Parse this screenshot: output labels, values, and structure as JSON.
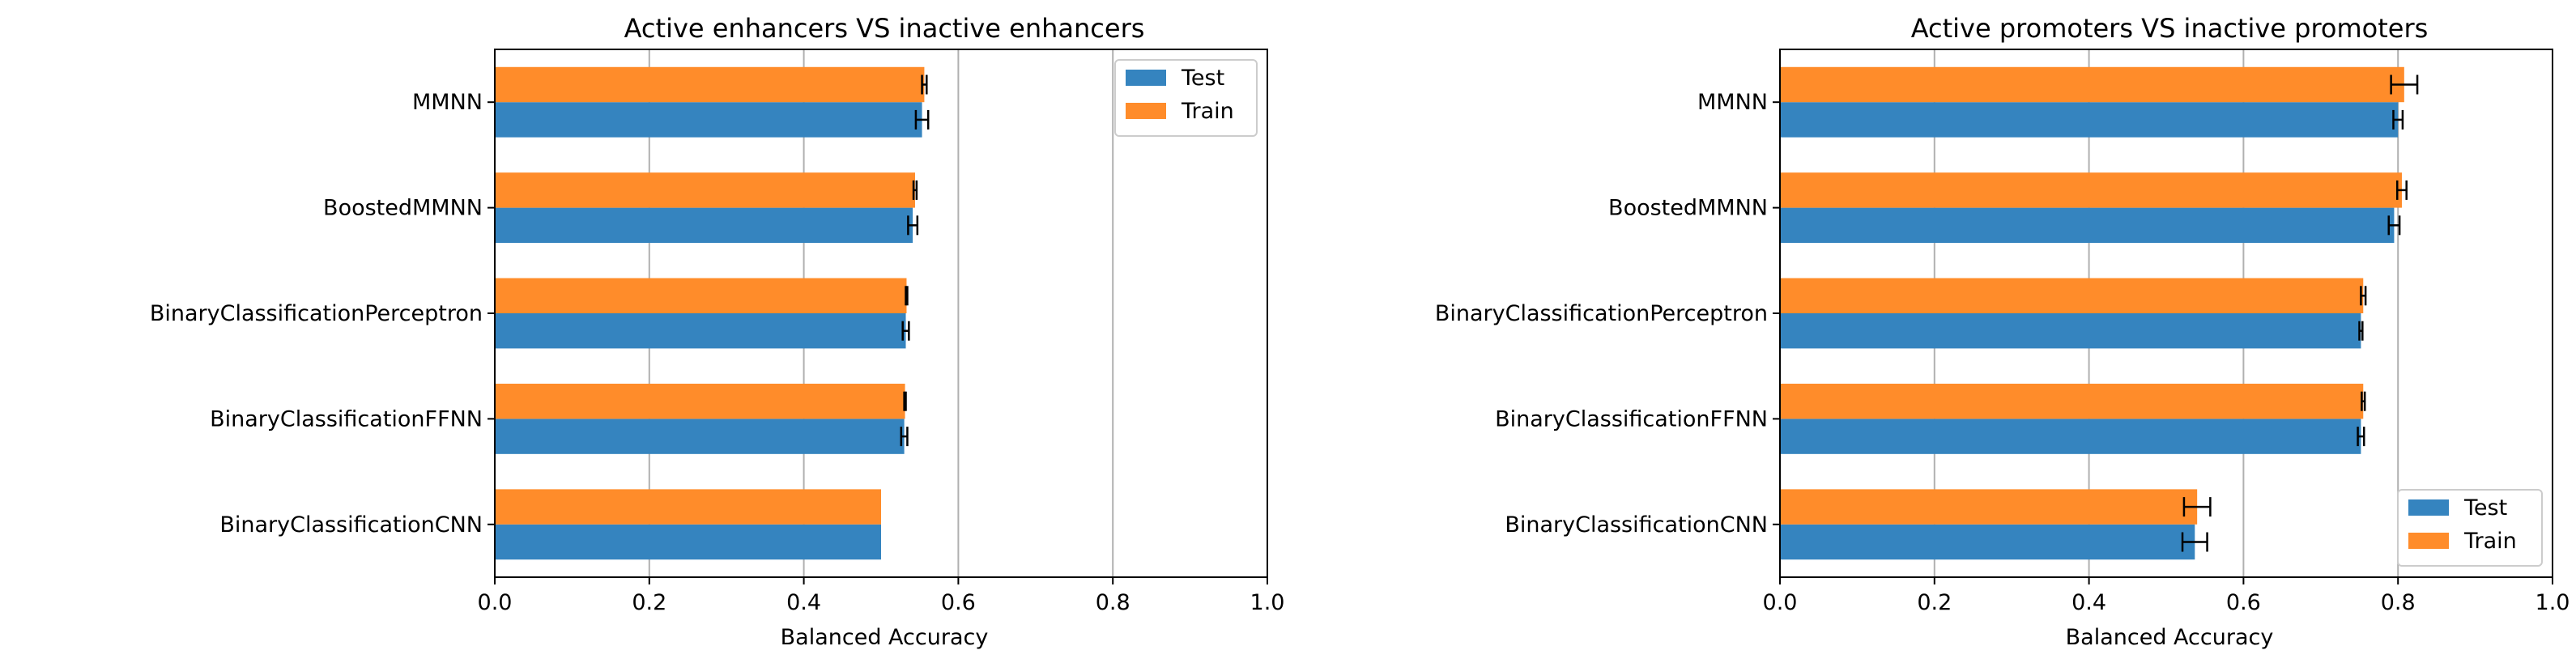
{
  "colors": {
    "test": "#3584bf",
    "train": "#ff8c2a",
    "grid": "#b0b0b0",
    "errorbar": "#000000"
  },
  "chart_data": [
    {
      "type": "bar",
      "orientation": "horizontal",
      "title": "Active enhancers VS inactive enhancers",
      "xlabel": "Balanced Accuracy",
      "ylabel": "",
      "xlim": [
        0,
        1.0
      ],
      "xticks": [
        "0.0",
        "0.2",
        "0.4",
        "0.6",
        "0.8",
        "1.0"
      ],
      "grid": "vertical",
      "legend_position": "upper-right",
      "categories": [
        "MMNN",
        "BoostedMMNN",
        "BinaryClassificationPerceptron",
        "BinaryClassificationFFNN",
        "BinaryClassificationCNN"
      ],
      "series": [
        {
          "name": "Test",
          "values": [
            0.553,
            0.541,
            0.532,
            0.53,
            0.5
          ],
          "errors": [
            0.008,
            0.006,
            0.004,
            0.004,
            0.0
          ]
        },
        {
          "name": "Train",
          "values": [
            0.556,
            0.544,
            0.533,
            0.531,
            0.5
          ],
          "errors": [
            0.003,
            0.002,
            0.001,
            0.001,
            0.0
          ]
        }
      ]
    },
    {
      "type": "bar",
      "orientation": "horizontal",
      "title": "Active promoters VS inactive promoters",
      "xlabel": "Balanced Accuracy",
      "ylabel": "",
      "xlim": [
        0,
        1.0
      ],
      "xticks": [
        "0.0",
        "0.2",
        "0.4",
        "0.6",
        "0.8",
        "1.0"
      ],
      "grid": "vertical",
      "legend_position": "lower-right",
      "categories": [
        "MMNN",
        "BoostedMMNN",
        "BinaryClassificationPerceptron",
        "BinaryClassificationFFNN",
        "BinaryClassificationCNN"
      ],
      "series": [
        {
          "name": "Test",
          "values": [
            0.8,
            0.795,
            0.752,
            0.752,
            0.537
          ],
          "errors": [
            0.006,
            0.007,
            0.002,
            0.004,
            0.016
          ]
        },
        {
          "name": "Train",
          "values": [
            0.808,
            0.805,
            0.755,
            0.755,
            0.54
          ],
          "errors": [
            0.017,
            0.006,
            0.003,
            0.002,
            0.017
          ]
        }
      ]
    }
  ]
}
